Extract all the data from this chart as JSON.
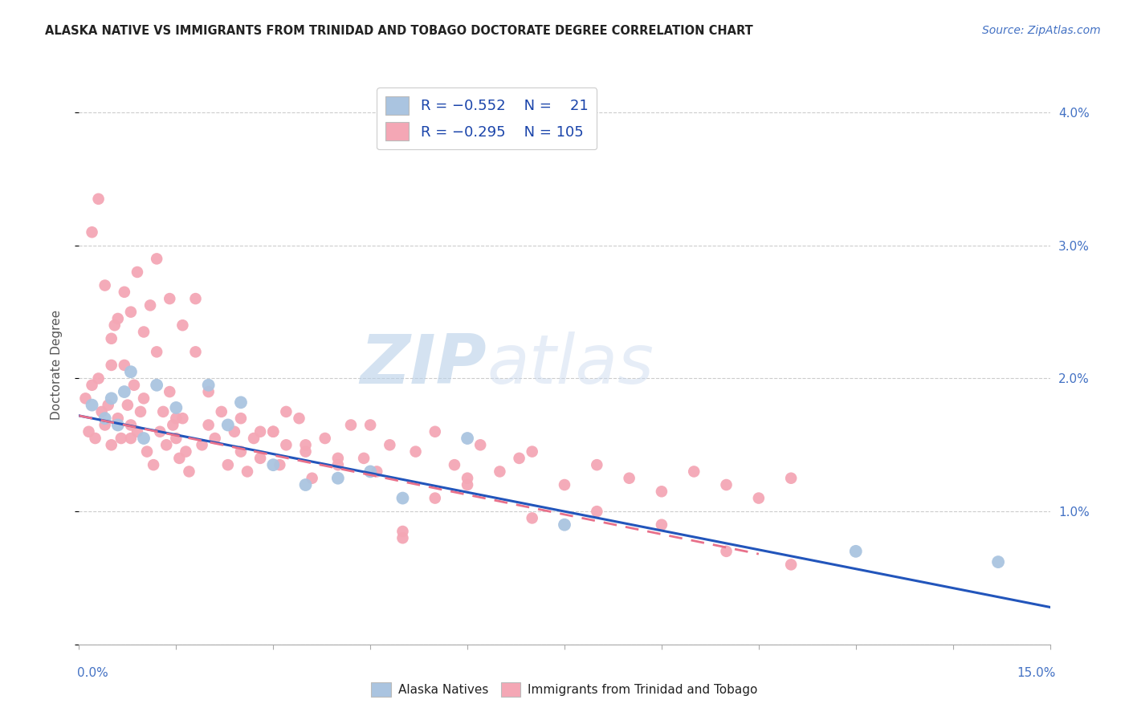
{
  "title": "ALASKA NATIVE VS IMMIGRANTS FROM TRINIDAD AND TOBAGO DOCTORATE DEGREE CORRELATION CHART",
  "source": "Source: ZipAtlas.com",
  "ylabel": "Doctorate Degree",
  "xlim": [
    0.0,
    15.0
  ],
  "ylim": [
    0.0,
    4.2
  ],
  "blue_color": "#aac4e0",
  "pink_color": "#f4a7b5",
  "blue_line_color": "#2255bb",
  "pink_line_color": "#e8708a",
  "watermark_zip": "ZIP",
  "watermark_atlas": "atlas",
  "background_color": "#ffffff",
  "grid_color": "#cccccc",
  "alaska_x": [
    0.2,
    0.4,
    0.5,
    0.6,
    0.7,
    0.8,
    1.0,
    1.2,
    1.5,
    2.0,
    2.3,
    2.5,
    3.0,
    3.5,
    4.0,
    4.5,
    5.0,
    6.0,
    7.5,
    12.0,
    14.2
  ],
  "alaska_y": [
    1.8,
    1.7,
    1.85,
    1.65,
    1.9,
    2.05,
    1.55,
    1.95,
    1.78,
    1.95,
    1.65,
    1.82,
    1.35,
    1.2,
    1.25,
    1.3,
    1.1,
    1.55,
    0.9,
    0.7,
    0.62
  ],
  "tt_x": [
    0.1,
    0.15,
    0.2,
    0.25,
    0.3,
    0.35,
    0.4,
    0.45,
    0.5,
    0.55,
    0.6,
    0.65,
    0.7,
    0.75,
    0.8,
    0.85,
    0.9,
    0.95,
    1.0,
    1.05,
    1.1,
    1.15,
    1.2,
    1.25,
    1.3,
    1.35,
    1.4,
    1.45,
    1.5,
    1.55,
    1.6,
    1.65,
    1.7,
    1.8,
    1.9,
    2.0,
    2.1,
    2.2,
    2.3,
    2.4,
    2.5,
    2.6,
    2.7,
    2.8,
    3.0,
    3.1,
    3.2,
    3.4,
    3.5,
    3.6,
    3.8,
    4.0,
    4.2,
    4.4,
    4.6,
    4.8,
    5.0,
    5.2,
    5.5,
    5.8,
    6.0,
    6.2,
    6.5,
    6.8,
    7.0,
    7.5,
    8.0,
    8.5,
    9.0,
    9.5,
    10.0,
    10.5,
    11.0
  ],
  "tt_y": [
    1.85,
    1.6,
    1.95,
    1.55,
    2.0,
    1.75,
    1.65,
    1.8,
    1.5,
    2.4,
    1.7,
    1.55,
    2.1,
    1.8,
    1.65,
    1.95,
    1.6,
    1.75,
    1.85,
    1.45,
    2.55,
    1.35,
    2.2,
    1.6,
    1.75,
    1.5,
    1.9,
    1.65,
    1.55,
    1.4,
    1.7,
    1.45,
    1.3,
    2.6,
    1.5,
    1.65,
    1.55,
    1.75,
    1.35,
    1.6,
    1.45,
    1.3,
    1.55,
    1.4,
    1.6,
    1.35,
    1.5,
    1.7,
    1.45,
    1.25,
    1.55,
    1.35,
    1.65,
    1.4,
    1.3,
    1.5,
    0.8,
    1.45,
    1.6,
    1.35,
    1.25,
    1.5,
    1.3,
    1.4,
    1.45,
    1.2,
    1.35,
    1.25,
    1.15,
    1.3,
    1.2,
    1.1,
    1.25
  ],
  "tt_extra_x": [
    0.2,
    0.3,
    0.4,
    0.5,
    0.6,
    0.7,
    0.8,
    0.9,
    1.0,
    1.2,
    1.4,
    1.6,
    1.8,
    2.0,
    2.5,
    3.0,
    3.5,
    4.0,
    5.0,
    5.5,
    6.0,
    7.0,
    8.0,
    9.0,
    10.0,
    11.0,
    4.5,
    3.2,
    2.8,
    1.5,
    0.8,
    0.5
  ],
  "tt_extra_y": [
    3.1,
    3.35,
    2.7,
    2.3,
    2.45,
    2.65,
    2.5,
    2.8,
    2.35,
    2.9,
    2.6,
    2.4,
    2.2,
    1.9,
    1.7,
    1.6,
    1.5,
    1.4,
    0.85,
    1.1,
    1.2,
    0.95,
    1.0,
    0.9,
    0.7,
    0.6,
    1.65,
    1.75,
    1.6,
    1.7,
    1.55,
    2.1
  ],
  "blue_line_x": [
    0.0,
    15.0
  ],
  "blue_line_y": [
    1.72,
    0.28
  ],
  "pink_line_x": [
    0.0,
    10.5
  ],
  "pink_line_y": [
    1.72,
    0.68
  ]
}
